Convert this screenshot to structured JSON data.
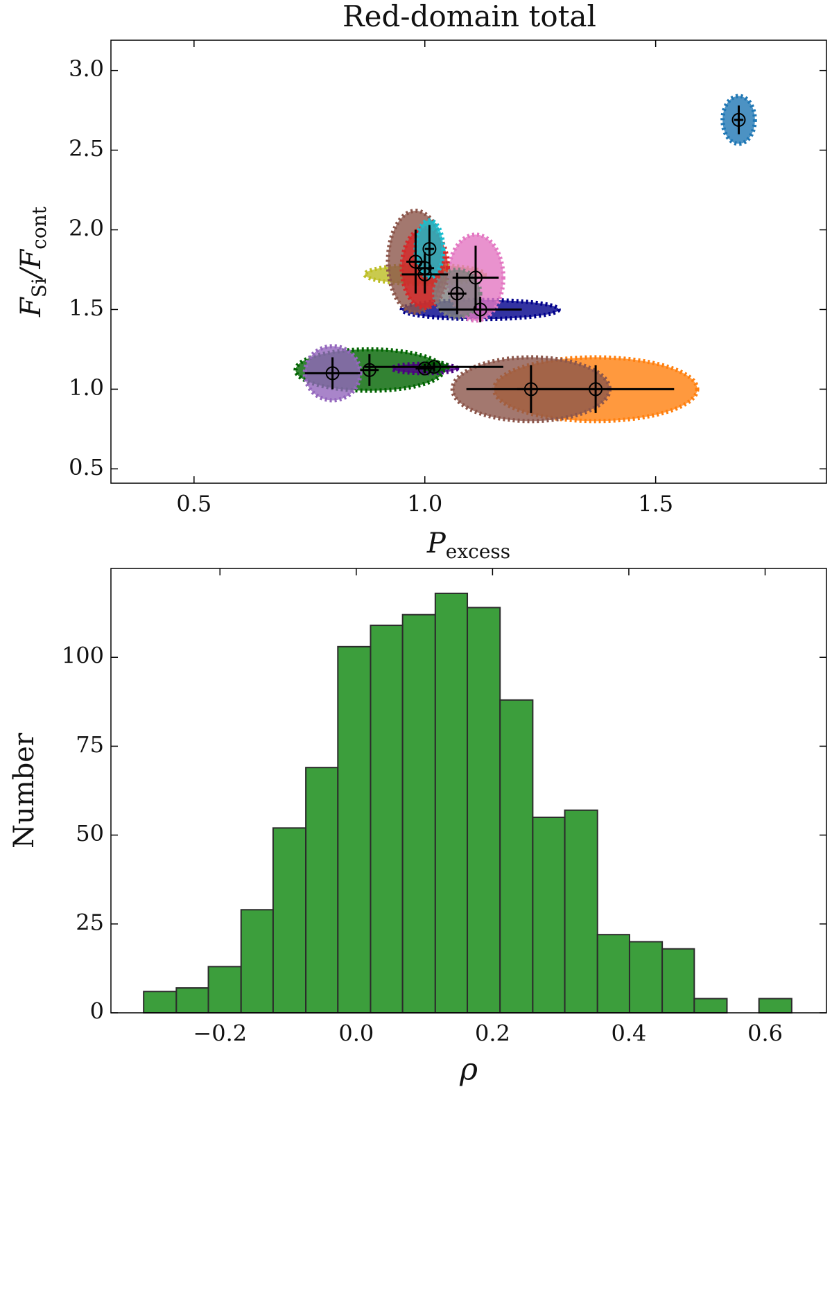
{
  "chart_data": [
    {
      "type": "scatter",
      "title": "Red-domain total",
      "xlabel_parts": [
        "P",
        "excess"
      ],
      "ylabel_parts": [
        "F",
        "Si",
        "/F",
        "cont"
      ],
      "xlim": [
        0.32,
        1.87
      ],
      "ylim": [
        0.41,
        3.19
      ],
      "xticks": [
        0.5,
        {
          "value": 1,
          "label": "1.0"
        },
        1.5
      ],
      "yticks": [
        0.5,
        {
          "value": 1,
          "label": "1.0"
        },
        1.5,
        {
          "value": 2,
          "label": "2.0"
        },
        2.5,
        {
          "value": 3,
          "label": "3.0"
        }
      ],
      "colors": [
        "#ff7f0e",
        "#8c564b",
        "#006400",
        "#9467bd",
        "#00008b",
        "#bcbd22",
        "#e377c2",
        "#8c564b",
        "#d62728",
        "#17becf",
        "#7f7f7f",
        "#4b0082",
        "#006400",
        "#1f77b4"
      ],
      "x": [
        1.37,
        1.23,
        0.88,
        0.8,
        1.12,
        1.0,
        1.11,
        0.98,
        1.0,
        1.01,
        1.07,
        1.0,
        1.02,
        1.68
      ],
      "y": [
        1.0,
        1.0,
        1.12,
        1.1,
        1.5,
        1.72,
        1.7,
        1.8,
        1.76,
        1.88,
        1.6,
        1.13,
        1.14,
        2.69
      ],
      "xerr": [
        0.17,
        0.14,
        0.02,
        0.06,
        0.09,
        0.05,
        0.05,
        0.02,
        0.02,
        0.01,
        0.02,
        0.02,
        0.15,
        0.01
      ],
      "yerr": [
        0.15,
        0.15,
        0.1,
        0.1,
        0.08,
        0.12,
        0.2,
        0.2,
        0.1,
        0.15,
        0.13,
        0.03,
        0.03,
        0.09
      ],
      "spread_x": [
        0.22,
        0.17,
        0.16,
        0.06,
        0.17,
        0.13,
        0.06,
        0.06,
        0.05,
        0.03,
        0.05,
        0.07,
        0.03,
        0.035
      ],
      "spread_y": [
        0.2,
        0.2,
        0.13,
        0.17,
        0.06,
        0.06,
        0.27,
        0.32,
        0.25,
        0.18,
        0.15,
        0.03,
        0.03,
        0.15
      ]
    },
    {
      "type": "histogram",
      "xlabel": "ρ",
      "ylabel": "Number",
      "color": "#3c9e3c",
      "edgecolor": "#2b2b2b",
      "bins": [
        -0.312,
        -0.264,
        -0.217,
        -0.169,
        -0.122,
        -0.074,
        -0.027,
        0.021,
        0.068,
        0.116,
        0.163,
        0.211,
        0.259,
        0.306,
        0.354,
        0.401,
        0.449,
        0.496,
        0.544,
        0.591,
        0.639
      ],
      "values": [
        6,
        7,
        13,
        29,
        52,
        69,
        103,
        109,
        112,
        118,
        114,
        88,
        55,
        57,
        22,
        20,
        18,
        4,
        0,
        4
      ],
      "xlim": [
        -0.36,
        0.69
      ],
      "ylim": [
        0,
        125
      ],
      "xticks": [
        {
          "value": -0.2,
          "label": "−0.2"
        },
        {
          "value": 0,
          "label": "0.0"
        },
        0.2,
        0.4,
        0.6
      ],
      "yticks": [
        0,
        25,
        50,
        75,
        100
      ]
    }
  ]
}
